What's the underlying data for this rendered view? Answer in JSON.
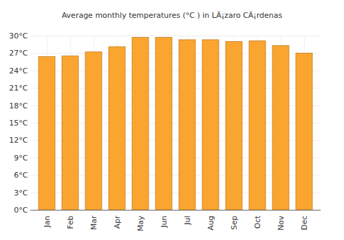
{
  "chart_data": {
    "type": "bar",
    "title": "Average monthly temperatures (°C ) in LÃ¡zaro CÃ¡rdenas",
    "categories": [
      "Jan",
      "Feb",
      "Mar",
      "Apr",
      "May",
      "Jun",
      "Jul",
      "Aug",
      "Sep",
      "Oct",
      "Nov",
      "Dec"
    ],
    "values": [
      26.4,
      26.5,
      27.2,
      28.1,
      29.7,
      29.7,
      29.3,
      29.3,
      29.0,
      29.1,
      28.3,
      27.0
    ],
    "color": "#fba531",
    "ylim": [
      0,
      30
    ],
    "yticks": [
      {
        "value": 0,
        "label": "0°C"
      },
      {
        "value": 3,
        "label": "3°C"
      },
      {
        "value": 6,
        "label": "6°C"
      },
      {
        "value": 9,
        "label": "9°C"
      },
      {
        "value": 12,
        "label": "12°C"
      },
      {
        "value": 15,
        "label": "15°C"
      },
      {
        "value": 18,
        "label": "18°C"
      },
      {
        "value": 21,
        "label": "21°C"
      },
      {
        "value": 24,
        "label": "24°C"
      },
      {
        "value": 27,
        "label": "27°C"
      },
      {
        "value": 30,
        "label": "30°C"
      }
    ],
    "grid": true
  }
}
